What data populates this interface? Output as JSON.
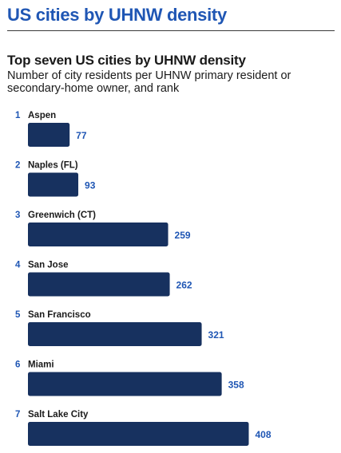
{
  "header": {
    "title": "US cities by UHNW density"
  },
  "colors": {
    "bar": "#17315f",
    "value": "#1f56b4",
    "rank": "#1f56b4",
    "accent": "#1f56b4"
  },
  "chart_data": {
    "type": "bar",
    "orientation": "horizontal",
    "title": "Top seven US cities by UHNW density",
    "subtitle": "Number of city residents per UHNW primary resident or secondary-home owner, and rank",
    "ranks": [
      "1",
      "2",
      "3",
      "4",
      "5",
      "6",
      "7"
    ],
    "categories": [
      "Aspen",
      "Naples (FL)",
      "Greenwich (CT)",
      "San Jose",
      "San Francisco",
      "Miami",
      "Salt Lake City"
    ],
    "values": [
      77,
      93,
      259,
      262,
      321,
      358,
      408
    ],
    "value_labels": [
      "77",
      "93",
      "259",
      "262",
      "321",
      "358",
      "408"
    ]
  }
}
